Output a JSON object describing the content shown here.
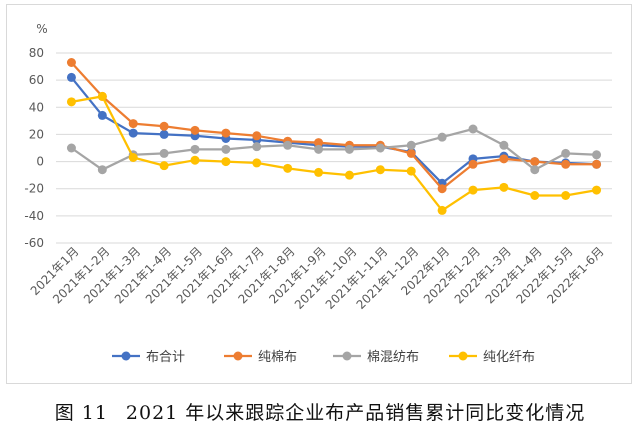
{
  "caption": {
    "figure_no": "图 11",
    "title": "2021 年以来跟踪企业布产品销售累计同比变化情况"
  },
  "chart_data": {
    "type": "line",
    "title": "",
    "unit_label": "%",
    "xlabel": "",
    "ylabel": "",
    "ylim": [
      -60,
      80
    ],
    "yticks": [
      80,
      60,
      40,
      20,
      0,
      -20,
      -40,
      -60
    ],
    "grid": true,
    "legend_position": "bottom",
    "categories": [
      "2021年1月",
      "2021年1-2月",
      "2021年1-3月",
      "2021年1-4月",
      "2021年1-5月",
      "2021年1-6月",
      "2021年1-7月",
      "2021年1-8月",
      "2021年1-9月",
      "2021年1-10月",
      "2021年1-11月",
      "2021年1-12月",
      "2022年1月",
      "2022年1-2月",
      "2022年1-3月",
      "2022年1-4月",
      "2022年1-5月",
      "2022年1-6月"
    ],
    "series": [
      {
        "name": "布合计",
        "color": "#4472C4",
        "values": [
          62,
          34,
          21,
          20,
          19,
          17,
          16,
          14,
          12,
          11,
          11,
          7,
          -16,
          2,
          4,
          0,
          -1,
          -2
        ]
      },
      {
        "name": "纯棉布",
        "color": "#ED7D31",
        "values": [
          73,
          48,
          28,
          26,
          23,
          21,
          19,
          15,
          14,
          12,
          12,
          6,
          -20,
          -2,
          2,
          0,
          -2,
          -2
        ]
      },
      {
        "name": "棉混纺布",
        "color": "#A5A5A5",
        "values": [
          10,
          -6,
          5,
          6,
          9,
          9,
          11,
          12,
          9,
          9,
          10,
          12,
          18,
          24,
          12,
          -6,
          6,
          5
        ]
      },
      {
        "name": "纯化纤布",
        "color": "#FFC000",
        "values": [
          44,
          48,
          3,
          -3,
          1,
          0,
          -1,
          -5,
          -8,
          -10,
          -6,
          -7,
          -36,
          -21,
          -19,
          -25,
          -25,
          -21
        ]
      }
    ]
  }
}
